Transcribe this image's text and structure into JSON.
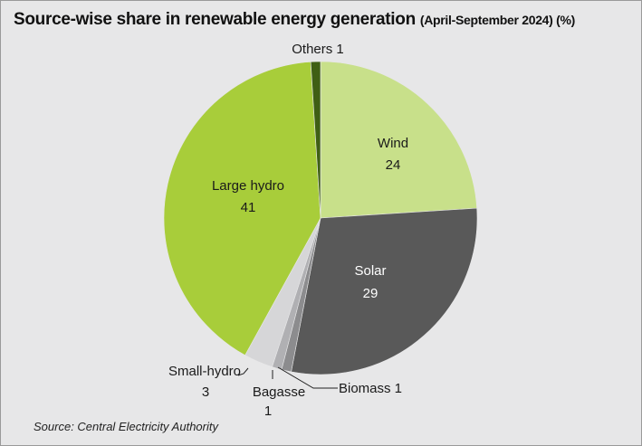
{
  "chart_data": {
    "type": "pie",
    "title": "Source-wise share in renewable energy generation",
    "subtitle": "(April-September 2024) (%)",
    "slices": [
      {
        "name": "Wind",
        "value": 24,
        "color": "#c8e08a"
      },
      {
        "name": "Solar",
        "value": 29,
        "color": "#595959"
      },
      {
        "name": "Biomass",
        "value": 1,
        "color": "#8c8c8e"
      },
      {
        "name": "Bagasse",
        "value": 1,
        "color": "#b0b0b3"
      },
      {
        "name": "Small-hydro",
        "value": 3,
        "color": "#d6d6d8"
      },
      {
        "name": "Large hydro",
        "value": 41,
        "color": "#a8cd3a"
      },
      {
        "name": "Others",
        "value": 1,
        "color": "#3f5f14"
      }
    ],
    "labels": {
      "Wind": [
        "Wind",
        "24"
      ],
      "Solar": [
        "Solar",
        "29"
      ],
      "Biomass": [
        "Biomass 1"
      ],
      "Bagasse": [
        "Bagasse",
        "1"
      ],
      "Small-hydro": [
        "Small-hydro",
        "3"
      ],
      "Large hydro": [
        "Large hydro",
        "41"
      ],
      "Others": [
        "Others 1"
      ]
    }
  },
  "source": "Source: Central Electricity Authority"
}
